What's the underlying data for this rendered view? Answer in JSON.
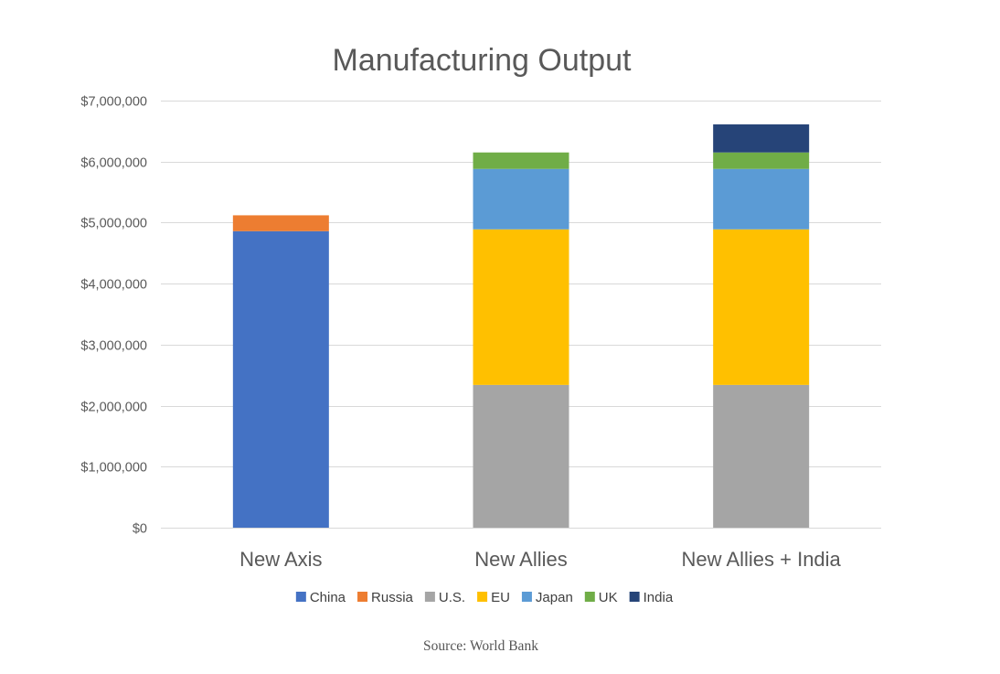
{
  "chart_data": {
    "type": "bar",
    "stacked": true,
    "title": "Manufacturing Output",
    "categories": [
      "New Axis",
      "New Allies",
      "New Allies + India"
    ],
    "series": [
      {
        "name": "China",
        "color": "#4472C4",
        "values": [
          4860000,
          0,
          0
        ]
      },
      {
        "name": "Russia",
        "color": "#ED7D31",
        "values": [
          260000,
          0,
          0
        ]
      },
      {
        "name": "U.S.",
        "color": "#A5A5A5",
        "values": [
          0,
          2340000,
          2340000
        ]
      },
      {
        "name": "EU",
        "color": "#FFC000",
        "values": [
          0,
          2550000,
          2550000
        ]
      },
      {
        "name": "Japan",
        "color": "#5B9BD5",
        "values": [
          0,
          990000,
          990000
        ]
      },
      {
        "name": "UK",
        "color": "#70AD47",
        "values": [
          0,
          270000,
          270000
        ]
      },
      {
        "name": "India",
        "color": "#264478",
        "values": [
          0,
          0,
          460000
        ]
      }
    ],
    "ylim": [
      0,
      7000000
    ],
    "yticks": [
      0,
      1000000,
      2000000,
      3000000,
      4000000,
      5000000,
      6000000,
      7000000
    ],
    "ytick_labels": [
      "$0",
      "$1,000,000",
      "$2,000,000",
      "$3,000,000",
      "$4,000,000",
      "$5,000,000",
      "$6,000,000",
      "$7,000,000"
    ],
    "grid": true,
    "legend_position": "bottom",
    "source_note": "Source: World Bank"
  }
}
